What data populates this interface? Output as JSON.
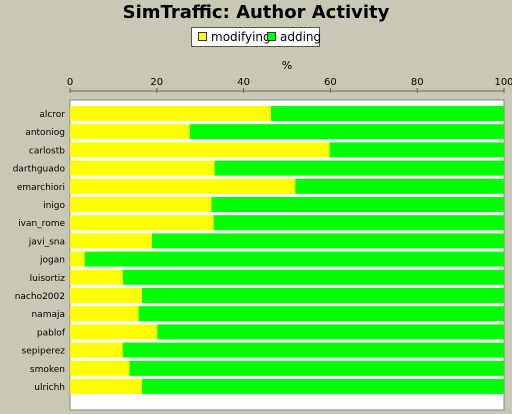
{
  "chart_data": {
    "type": "bar",
    "orientation": "horizontal",
    "stacking": "percent",
    "title": "SimTraffic: Author Activity",
    "xlabel": "%",
    "ylabel": "",
    "xlim": [
      0,
      100
    ],
    "xticks": [
      "0",
      "20",
      "40",
      "60",
      "80",
      "100"
    ],
    "grid": false,
    "legend_position": "top",
    "categories": [
      "alcror",
      "antoniog",
      "carlostb",
      "darthguado",
      "emarchiori",
      "inigo",
      "ivan_rome",
      "javi_sna",
      "jogan",
      "luisortiz",
      "nacho2002",
      "namaja",
      "pablof",
      "sepiperez",
      "smoken",
      "ulrichh"
    ],
    "series": [
      {
        "name": "modifying",
        "color": "#ffff00",
        "values": [
          46.3,
          27.6,
          59.8,
          33.3,
          51.9,
          32.6,
          33.1,
          18.9,
          3.4,
          12.2,
          16.6,
          15.8,
          20.1,
          12.2,
          13.7,
          16.6
        ]
      },
      {
        "name": "adding",
        "color": "#00ff00",
        "values": [
          53.7,
          72.4,
          40.2,
          66.7,
          48.1,
          67.4,
          66.9,
          81.1,
          96.6,
          87.8,
          83.4,
          84.2,
          79.9,
          87.8,
          86.3,
          83.4
        ]
      }
    ]
  }
}
